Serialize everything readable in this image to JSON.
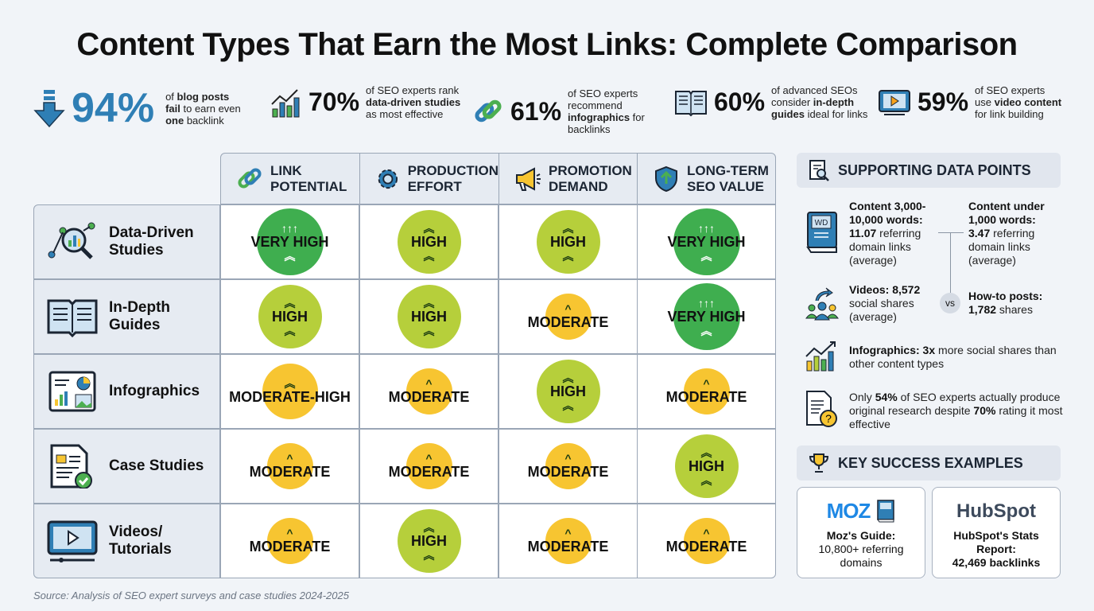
{
  "title": "Content Types That Earn the Most Links: Complete Comparison",
  "stats": [
    {
      "value": "94%",
      "pre": "of ",
      "b1": "blog posts",
      "mid1": " ",
      "b2": "fail",
      "mid2": " to earn even ",
      "b3": "one",
      "post": " backlink",
      "icon": "down-arrow-icon"
    },
    {
      "value": "70%",
      "pre": "of SEO experts rank ",
      "b1": "data-driven studies",
      "post": " as most effective",
      "icon": "bar-chart-icon"
    },
    {
      "value": "61%",
      "pre": "of SEO experts recommend ",
      "b1": "infographics",
      "post": " for backlinks",
      "icon": "link-icon"
    },
    {
      "value": "60%",
      "pre": "of advanced SEOs consider ",
      "b1": "in-depth guides",
      "post": " ideal for links",
      "icon": "book-icon"
    },
    {
      "value": "59%",
      "pre": "of SEO experts use ",
      "b1": "video content",
      "post": " for link building",
      "icon": "video-icon"
    }
  ],
  "columns": [
    {
      "l1": "LINK",
      "l2": "POTENTIAL",
      "icon": "link-icon"
    },
    {
      "l1": "PRODUCTION",
      "l2": "EFFORT",
      "icon": "gear-icon"
    },
    {
      "l1": "PROMOTION",
      "l2": "DEMAND",
      "icon": "megaphone-icon"
    },
    {
      "l1": "LONG-TERM",
      "l2": "SEO VALUE",
      "icon": "shield-icon"
    }
  ],
  "rows": [
    {
      "l1": "Data-Driven",
      "l2": "Studies",
      "icon": "magnifier-chart-icon",
      "ratings": [
        "VERY HIGH",
        "HIGH",
        "HIGH",
        "VERY HIGH"
      ]
    },
    {
      "l1": "In-Depth",
      "l2": "Guides",
      "icon": "open-book-icon",
      "ratings": [
        "HIGH",
        "HIGH",
        "MODERATE",
        "VERY HIGH"
      ]
    },
    {
      "l1": "Infographics",
      "l2": "",
      "icon": "infographic-icon",
      "ratings": [
        "MODERATE-HIGH",
        "MODERATE",
        "HIGH",
        "MODERATE"
      ]
    },
    {
      "l1": "Case Studies",
      "l2": "",
      "icon": "document-check-icon",
      "ratings": [
        "MODERATE",
        "MODERATE",
        "MODERATE",
        "HIGH"
      ]
    },
    {
      "l1": "Videos/",
      "l2": "Tutorials",
      "icon": "video-player-icon",
      "ratings": [
        "MODERATE",
        "HIGH",
        "MODERATE",
        "MODERATE"
      ]
    }
  ],
  "colors": {
    "very_high": "#3fae4f",
    "high": "#b6cf3b",
    "moderate": "#f7c531",
    "accent": "#2f7fb5"
  },
  "supporting": {
    "title": "SUPPORTING DATA POINTS",
    "long_b1": "Content 3,000-10,000 words:",
    "long_b2": "11.07",
    "long_t": " referring domain links (average)",
    "short_b1": "Content under 1,000 words:",
    "short_b2": "3.47",
    "short_t": " referring domain links (average)",
    "video_b": "Videos: 8,572",
    "video_t": " social shares (average)",
    "vs": "vs",
    "howto_b1": "How-to posts:",
    "howto_b2": "1,782",
    "howto_t": " shares",
    "info_b": "Infographics: 3x",
    "info_t": " more social shares than other content types",
    "orig_t1": "Only ",
    "orig_b1": "54%",
    "orig_t2": " of SEO experts actually produce original research despite ",
    "orig_b2": "70%",
    "orig_t3": " rating it most effective"
  },
  "examples": {
    "title": "KEY SUCCESS EXAMPLES",
    "cards": [
      {
        "logo": "MOZ",
        "l1": "Moz's Guide:",
        "l2": "10,800+ referring",
        "l3": "domains"
      },
      {
        "logo": "HubSpot",
        "l1": "HubSpot's Stats",
        "l2": "Report:",
        "l3": "42,469 backlinks"
      }
    ]
  },
  "source": "Source: Analysis of SEO expert surveys and case studies 2024-2025"
}
